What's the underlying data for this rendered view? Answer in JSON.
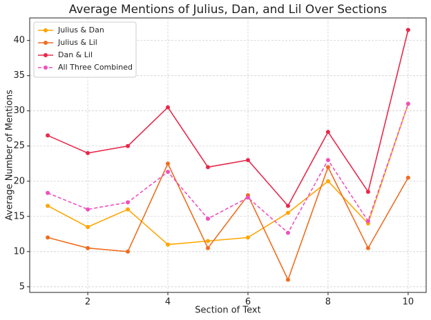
{
  "chart_data": {
    "type": "line",
    "title": "Average Mentions of Julius, Dan, and Lil Over Sections",
    "x_label": "Section of Text",
    "y_label": "Average Number of Mentions",
    "x": [
      1,
      2,
      3,
      4,
      5,
      6,
      7,
      8,
      9,
      10
    ],
    "series": [
      {
        "name": "Julius & Dan",
        "color": "#ffa600",
        "dashed": false,
        "values": [
          16.5,
          13.5,
          16,
          11,
          11.5,
          12,
          15.5,
          20,
          14,
          31
        ]
      },
      {
        "name": "Julius & Lil",
        "color": "#f26b1d",
        "dashed": false,
        "values": [
          12,
          10.5,
          10,
          22.5,
          10.5,
          18,
          6,
          22,
          10.5,
          20.5
        ]
      },
      {
        "name": "Dan & Lil",
        "color": "#e8284a",
        "dashed": false,
        "values": [
          26.5,
          24,
          25,
          30.5,
          22,
          23,
          16.5,
          27,
          18.5,
          41.5
        ]
      },
      {
        "name": "All Three Combined",
        "color": "#ef4fbf",
        "dashed": true,
        "values": [
          18.33,
          16,
          17,
          21.33,
          14.67,
          17.67,
          12.67,
          23,
          14.33,
          31
        ]
      }
    ],
    "xlim": [
      0.55,
      10.45
    ],
    "xticks": [
      2,
      4,
      6,
      8,
      10
    ],
    "ylim": [
      4.2,
      43.2
    ],
    "yticks": [
      5,
      10,
      15,
      20,
      25,
      30,
      35,
      40
    ],
    "grid": true,
    "legend": "upper left"
  }
}
